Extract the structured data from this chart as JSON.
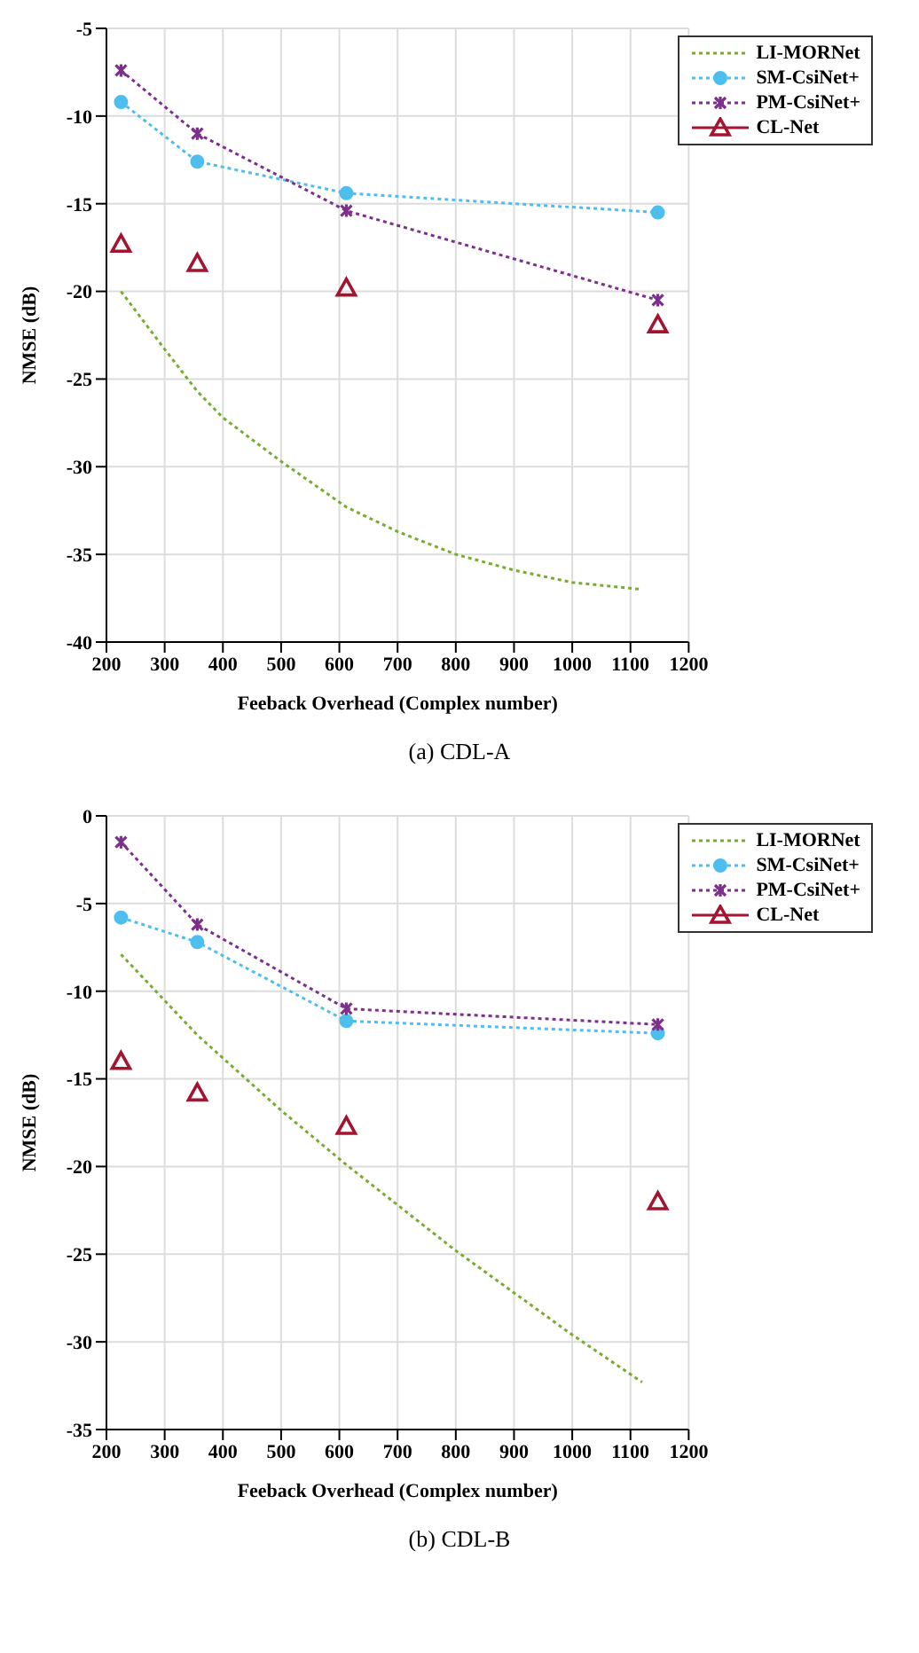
{
  "chart_data": [
    {
      "type": "line",
      "title": "(a) CDL-A",
      "xlabel": "Feeback Overhead (Complex number)",
      "ylabel": "NMSE (dB)",
      "xlim": [
        200,
        1200
      ],
      "xticks": [
        200,
        300,
        400,
        500,
        600,
        700,
        800,
        900,
        1000,
        1100,
        1200
      ],
      "ylim": [
        -40,
        -5
      ],
      "yticks": [
        -40,
        -35,
        -30,
        -25,
        -20,
        -15,
        -10,
        -5
      ],
      "grid": true,
      "legend": "top right",
      "line_style": "dotted",
      "series": [
        {
          "name": "LI-MORNet",
          "color": "#77ac30",
          "marker": "none",
          "x": [
            225,
            300,
            356,
            400,
            500,
            612,
            700,
            800,
            900,
            1000,
            1120
          ],
          "values": [
            -20,
            -23.3,
            -25.7,
            -27.2,
            -29.7,
            -32.3,
            -33.7,
            -35,
            -35.9,
            -36.6,
            -37
          ]
        },
        {
          "name": "SM-CsiNet+",
          "color": "#4dbeee",
          "marker": "circle",
          "x": [
            225,
            356,
            612,
            1147
          ],
          "values": [
            -9.2,
            -12.6,
            -14.4,
            -15.5
          ]
        },
        {
          "name": "PM-CsiNet+",
          "color": "#7e2f8e",
          "marker": "cross",
          "x": [
            225,
            356,
            612,
            1147
          ],
          "values": [
            -7.4,
            -11.0,
            -15.4,
            -20.5
          ]
        },
        {
          "name": "CL-Net",
          "type": "scatter",
          "color": "#a2142f",
          "marker": "triangle",
          "x": [
            225,
            356,
            612,
            1147
          ],
          "values": [
            -17.3,
            -18.4,
            -19.8,
            -21.9
          ]
        }
      ]
    },
    {
      "type": "line",
      "title": "(b) CDL-B",
      "xlabel": "Feeback Overhead (Complex number)",
      "ylabel": "NMSE (dB)",
      "xlim": [
        200,
        1200
      ],
      "xticks": [
        200,
        300,
        400,
        500,
        600,
        700,
        800,
        900,
        1000,
        1100,
        1200
      ],
      "ylim": [
        -35,
        0
      ],
      "yticks": [
        -35,
        -30,
        -25,
        -20,
        -15,
        -10,
        -5,
        0
      ],
      "grid": true,
      "legend": "top right",
      "line_style": "dotted",
      "series": [
        {
          "name": "LI-MORNet",
          "color": "#77ac30",
          "marker": "none",
          "x": [
            225,
            356,
            500,
            612,
            800,
            1000,
            1120
          ],
          "values": [
            -7.9,
            -12.5,
            -16.8,
            -19.9,
            -24.8,
            -29.6,
            -32.3
          ]
        },
        {
          "name": "SM-CsiNet+",
          "color": "#4dbeee",
          "marker": "circle",
          "x": [
            225,
            356,
            612,
            1147
          ],
          "values": [
            -5.8,
            -7.2,
            -11.7,
            -12.4
          ]
        },
        {
          "name": "PM-CsiNet+",
          "color": "#7e2f8e",
          "marker": "cross",
          "x": [
            225,
            356,
            612,
            1147
          ],
          "values": [
            -1.5,
            -6.2,
            -11.0,
            -11.9
          ]
        },
        {
          "name": "CL-Net",
          "type": "scatter",
          "color": "#a2142f",
          "marker": "triangle",
          "x": [
            225,
            356,
            612,
            1147
          ],
          "values": [
            -14.0,
            -15.8,
            -17.7,
            -22.0
          ]
        }
      ]
    }
  ]
}
